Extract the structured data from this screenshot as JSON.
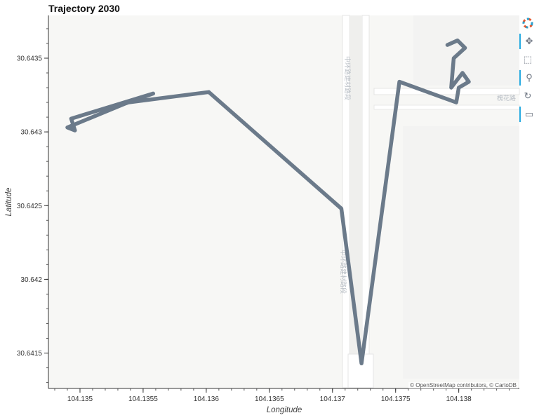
{
  "title": "Trajectory 2030",
  "attribution": "© OpenStreetMap contributors, © CartoDB",
  "map_labels": {
    "road_v1": "中环路建材路段",
    "road_v2": "中环路建材路段",
    "road_h": "槐花路"
  },
  "toolbar": [
    {
      "icon": "bokeh-logo-icon",
      "glyph": "◉",
      "active": false
    },
    {
      "icon": "pan-icon",
      "glyph": "✥",
      "active": true
    },
    {
      "icon": "box-zoom-icon",
      "glyph": "⬚",
      "active": false
    },
    {
      "icon": "wheel-zoom-icon",
      "glyph": "⚲",
      "active": true
    },
    {
      "icon": "reset-icon",
      "glyph": "↻",
      "active": false
    },
    {
      "icon": "hover-icon",
      "glyph": "▭",
      "active": true
    }
  ],
  "chart_data": {
    "type": "line",
    "title": "Trajectory 2030",
    "xlabel": "Longitude",
    "ylabel": "Latitude",
    "xlim": [
      104.13475,
      104.13848
    ],
    "ylim": [
      30.64126,
      30.64379
    ],
    "xticks": [
      104.135,
      104.1355,
      104.136,
      104.1365,
      104.137,
      104.1375,
      104.138
    ],
    "xtick_labels": [
      "104.135",
      "104.1355",
      "104.136",
      "104.1365",
      "104.137",
      "104.1375",
      "104.138"
    ],
    "yticks": [
      30.6415,
      30.642,
      30.6425,
      30.643,
      30.6435
    ],
    "ytick_labels": [
      "30.6415",
      "30.642",
      "30.6425",
      "30.643",
      "30.6435"
    ],
    "grid": false,
    "line_color": "#6b7a8a",
    "series": [
      {
        "x": [
          104.13522,
          104.13558,
          104.13493,
          104.13496,
          104.1349,
          104.13538,
          104.13602,
          104.13707,
          104.13723,
          104.13753,
          104.13798,
          104.138,
          104.13808,
          104.13803,
          104.13794,
          104.13796,
          104.13805,
          104.13799,
          104.13791
        ],
        "y": [
          30.64315,
          30.64326,
          30.64309,
          30.64301,
          30.64303,
          30.6432,
          30.64327,
          30.64248,
          30.64143,
          30.64334,
          30.6432,
          30.6433,
          30.64334,
          30.6434,
          30.6433,
          30.6435,
          30.64357,
          30.64362,
          30.64359
        ]
      }
    ]
  }
}
